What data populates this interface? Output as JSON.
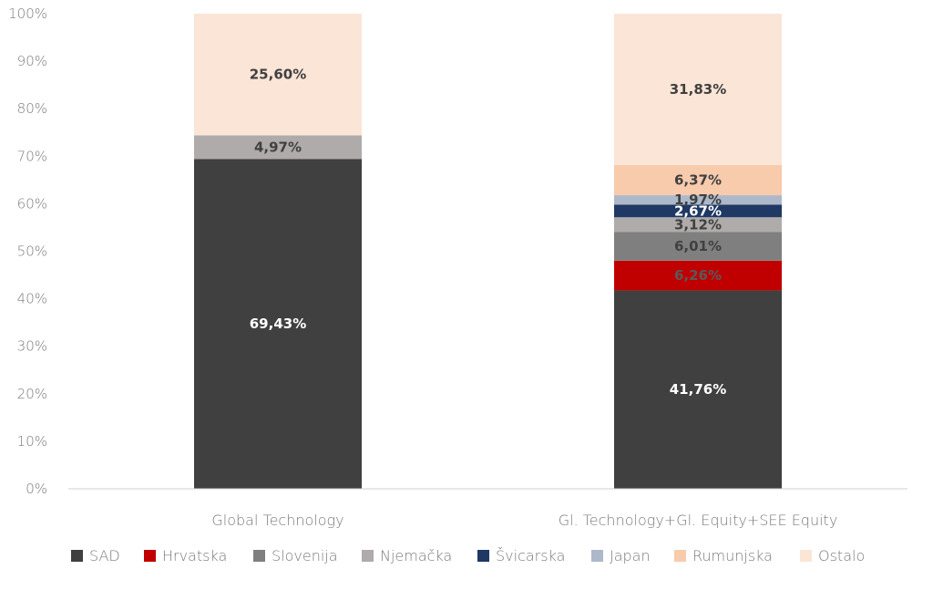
{
  "chart_data": {
    "type": "bar",
    "stacked": true,
    "categories": [
      "Global Technology",
      "Gl. Technology+Gl. Equity+SEE Equity"
    ],
    "series": [
      {
        "name": "SAD",
        "color": "#404040",
        "label_color": "#ffffff",
        "values": [
          69.43,
          41.76
        ],
        "labels": [
          "69,43%",
          "41,76%"
        ]
      },
      {
        "name": "Hrvatska",
        "color": "#c00000",
        "label_color": "#595959",
        "values": [
          0,
          6.26
        ],
        "labels": [
          "",
          "6,26%"
        ]
      },
      {
        "name": "Slovenija",
        "color": "#7f7f7f",
        "label_color": "#404040",
        "values": [
          0,
          6.01
        ],
        "labels": [
          "",
          "6,01%"
        ]
      },
      {
        "name": "Njemačka",
        "color": "#afabab",
        "label_color": "#404040",
        "values": [
          4.97,
          3.12
        ],
        "labels": [
          "4,97%",
          "3,12%"
        ]
      },
      {
        "name": "Švicarska",
        "color": "#1f3864",
        "label_color": "#ffffff",
        "values": [
          0,
          2.67
        ],
        "labels": [
          "",
          "2,67%"
        ]
      },
      {
        "name": "Japan",
        "color": "#adb9ca",
        "label_color": "#404040",
        "values": [
          0,
          1.97
        ],
        "labels": [
          "",
          "1,97%"
        ]
      },
      {
        "name": "Rumunjska",
        "color": "#f8cbad",
        "label_color": "#404040",
        "values": [
          0,
          6.37
        ],
        "labels": [
          "",
          "6,37%"
        ]
      },
      {
        "name": "Ostalo",
        "color": "#fbe5d6",
        "label_color": "#404040",
        "values": [
          25.6,
          31.83
        ],
        "labels": [
          "25,60%",
          "31,83%"
        ]
      }
    ],
    "yticks": [
      "0%",
      "10%",
      "20%",
      "30%",
      "40%",
      "50%",
      "60%",
      "70%",
      "80%",
      "90%",
      "100%"
    ],
    "ylim": [
      0,
      100
    ],
    "grid": false,
    "legend": "bottom"
  }
}
